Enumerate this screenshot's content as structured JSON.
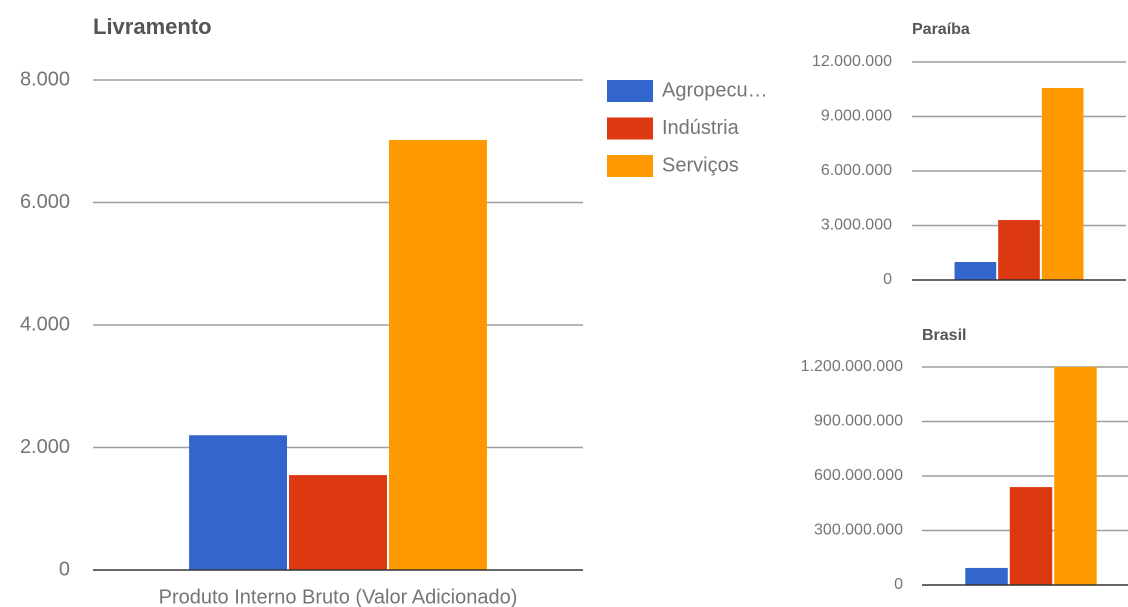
{
  "chart_data": [
    {
      "type": "bar",
      "title": "Livramento",
      "categories": [
        "Produto Interno Bruto (Valor Adicionado)"
      ],
      "series": [
        {
          "name": "Agropecu…",
          "color": "#3366cc",
          "values": [
            2200
          ]
        },
        {
          "name": "Indústria",
          "color": "#dc3912",
          "values": [
            1550
          ]
        },
        {
          "name": "Serviços",
          "color": "#ff9900",
          "values": [
            7020
          ]
        }
      ],
      "ylim": [
        0,
        8000
      ],
      "yticks": [
        0,
        {
          "value": 2000,
          "label": "2.000"
        },
        {
          "value": 4000,
          "label": "4.000"
        },
        {
          "value": 6000,
          "label": "6.000"
        },
        {
          "value": 8000,
          "label": "8.000"
        }
      ],
      "grid": true,
      "legend": "right"
    },
    {
      "type": "bar",
      "title": "Paraíba",
      "series": [
        {
          "color": "#3366cc",
          "values": [
            990000
          ]
        },
        {
          "color": "#dc3912",
          "values": [
            3300000
          ]
        },
        {
          "color": "#ff9900",
          "values": [
            10570000
          ]
        }
      ],
      "ylim": [
        0,
        12000000
      ],
      "yticks": [
        0,
        {
          "value": 3000000,
          "label": "3.000.000"
        },
        {
          "value": 6000000,
          "label": "6.000.000"
        },
        {
          "value": 9000000,
          "label": "9.000.000"
        },
        {
          "value": 12000000,
          "label": "12.000.000"
        }
      ],
      "grid": true
    },
    {
      "type": "bar",
      "title": "Brasil",
      "series": [
        {
          "color": "#3366cc",
          "values": [
            94000000
          ]
        },
        {
          "color": "#dc3912",
          "values": [
            539000000
          ]
        },
        {
          "color": "#ff9900",
          "values": [
            1200000000
          ]
        }
      ],
      "ylim": [
        0,
        1200000000
      ],
      "yticks": [
        0,
        {
          "value": 300000000,
          "label": "300.000.000"
        },
        {
          "value": 600000000,
          "label": "600.000.000"
        },
        {
          "value": 900000000,
          "label": "900.000.000"
        },
        {
          "value": 1200000000,
          "label": "1.200.000.000"
        }
      ],
      "grid": true
    }
  ]
}
